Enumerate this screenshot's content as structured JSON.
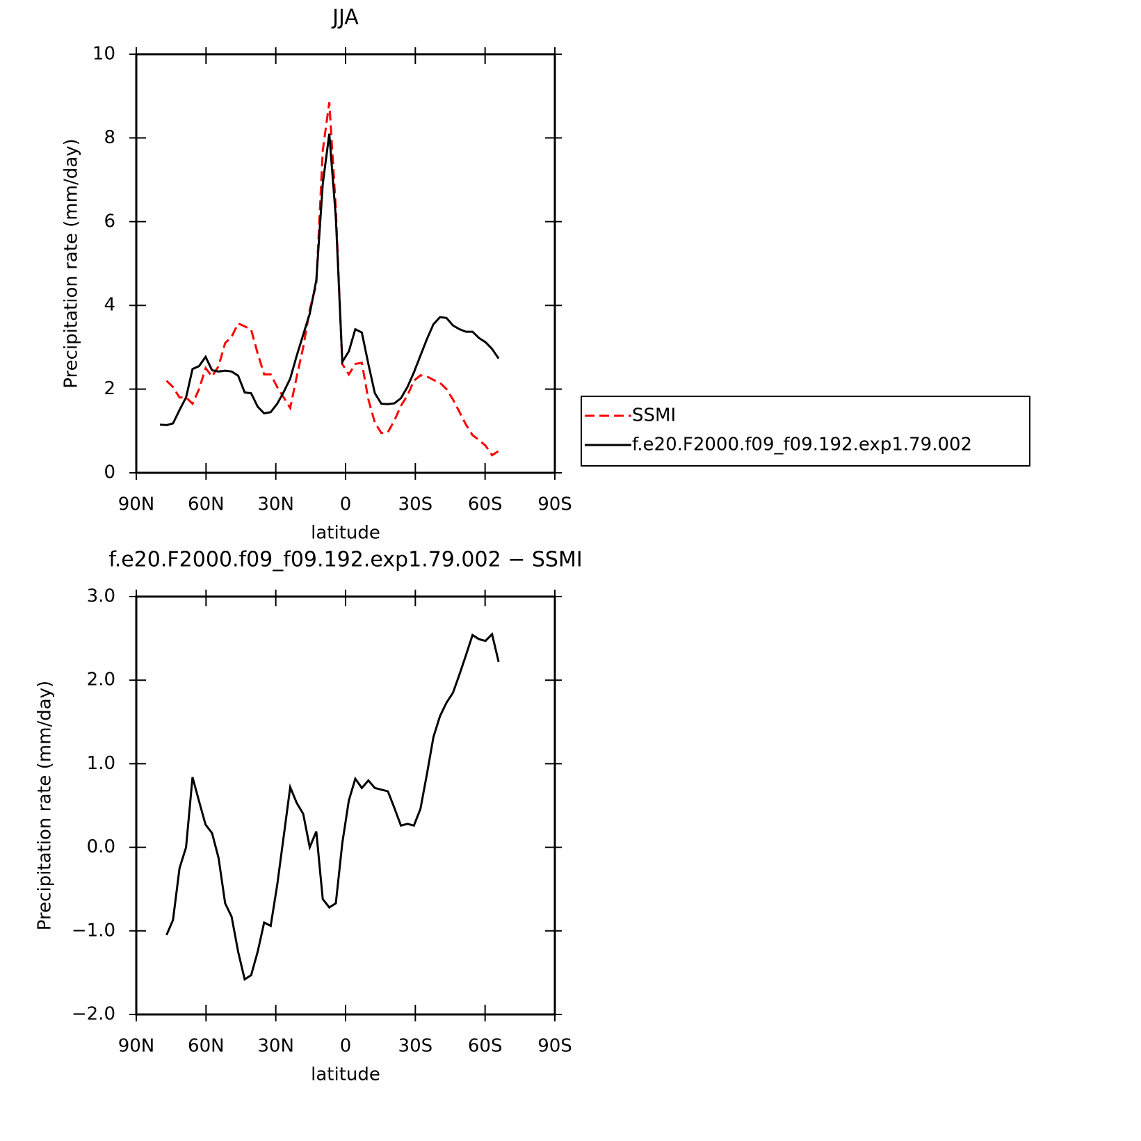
{
  "chart_data": [
    {
      "type": "line",
      "title": "JJA",
      "xlabel": "latitude",
      "ylabel": "Precipitation rate (mm/day)",
      "x": [
        79.8,
        77,
        74.2,
        71.4,
        68.6,
        65.8,
        63,
        60.2,
        57.4,
        54.6,
        51.8,
        49,
        46.2,
        43.4,
        40.6,
        37.8,
        35,
        32.2,
        29.4,
        26.6,
        23.8,
        21,
        18.2,
        15.4,
        12.6,
        9.8,
        7,
        4.2,
        1.4,
        -1.4,
        -4.2,
        -7,
        -9.8,
        -12.6,
        -15.4,
        -18.2,
        -21,
        -23.8,
        -26.6,
        -29.4,
        -32.2,
        -35,
        -37.8,
        -40.6,
        -43.4,
        -46.2,
        -49,
        -51.8,
        -54.6,
        -57.4,
        -60.2,
        -63,
        -65.8
      ],
      "xlim": [
        90,
        -90
      ],
      "xticks": [
        {
          "value": 90,
          "label": "90N"
        },
        {
          "value": 60,
          "label": "60N"
        },
        {
          "value": 30,
          "label": "30N"
        },
        0,
        {
          "value": -30,
          "label": "30S"
        },
        {
          "value": -60,
          "label": "60S"
        },
        {
          "value": -90,
          "label": "90S"
        }
      ],
      "ylim": [
        0,
        10
      ],
      "yticks": [
        0,
        2,
        4,
        6,
        8,
        10
      ],
      "legend": "right",
      "series": [
        {
          "name": "SSMI",
          "color": "#ff0000",
          "dashed": true,
          "values": [
            null,
            2.2,
            2.05,
            1.8,
            1.8,
            1.65,
            2.0,
            2.5,
            2.3,
            2.55,
            3.1,
            3.25,
            3.57,
            3.5,
            3.42,
            2.85,
            2.35,
            2.35,
            2.05,
            1.8,
            1.55,
            2.3,
            3.0,
            3.9,
            4.5,
            7.7,
            8.85,
            6.3,
            2.6,
            2.35,
            2.6,
            2.63,
            1.75,
            1.2,
            0.95,
            0.97,
            1.25,
            1.6,
            1.85,
            2.2,
            2.33,
            2.3,
            2.22,
            2.15,
            2.0,
            1.75,
            1.45,
            1.15,
            0.9,
            0.78,
            0.65,
            0.42,
            0.52
          ]
        },
        {
          "name": "f.e20.F2000.f09_f09.192.exp1.79.002",
          "color": "#000000",
          "dashed": false,
          "values": [
            1.15,
            1.14,
            1.18,
            1.5,
            1.8,
            2.48,
            2.55,
            2.77,
            2.45,
            2.42,
            2.44,
            2.42,
            2.32,
            1.92,
            1.9,
            1.58,
            1.42,
            1.45,
            1.65,
            1.93,
            2.25,
            2.8,
            3.3,
            3.8,
            4.6,
            6.9,
            8.1,
            6.1,
            2.65,
            2.9,
            3.43,
            3.35,
            2.6,
            1.9,
            1.65,
            1.64,
            1.66,
            1.78,
            2.05,
            2.4,
            2.8,
            3.2,
            3.55,
            3.72,
            3.7,
            3.52,
            3.43,
            3.37,
            3.37,
            3.22,
            3.12,
            2.96,
            2.73
          ]
        }
      ]
    },
    {
      "type": "line",
      "title": "f.e20.F2000.f09_f09.192.exp1.79.002 − SSMI",
      "xlabel": "latitude",
      "ylabel": "Precipitation rate (mm/day)",
      "x": [
        79.8,
        77,
        74.2,
        71.4,
        68.6,
        65.8,
        63,
        60.2,
        57.4,
        54.6,
        51.8,
        49,
        46.2,
        43.4,
        40.6,
        37.8,
        35,
        32.2,
        29.4,
        26.6,
        23.8,
        21,
        18.2,
        15.4,
        12.6,
        9.8,
        7,
        4.2,
        1.4,
        -1.4,
        -4.2,
        -7,
        -9.8,
        -12.6,
        -15.4,
        -18.2,
        -21,
        -23.8,
        -26.6,
        -29.4,
        -32.2,
        -35,
        -37.8,
        -40.6,
        -43.4,
        -46.2,
        -49,
        -51.8,
        -54.6,
        -57.4,
        -60.2,
        -63,
        -65.8
      ],
      "xlim": [
        90,
        -90
      ],
      "xticks": [
        {
          "value": 90,
          "label": "90N"
        },
        {
          "value": 60,
          "label": "60N"
        },
        {
          "value": 30,
          "label": "30N"
        },
        0,
        {
          "value": -30,
          "label": "30S"
        },
        {
          "value": -60,
          "label": "60S"
        },
        {
          "value": -90,
          "label": "90S"
        }
      ],
      "ylim": [
        -2,
        3
      ],
      "yticks": [
        {
          "value": -2,
          "label": "−2.0"
        },
        {
          "value": -1,
          "label": "−1.0"
        },
        {
          "value": 0,
          "label": "0.0"
        },
        {
          "value": 1,
          "label": "1.0"
        },
        {
          "value": 2,
          "label": "2.0"
        },
        {
          "value": 3,
          "label": "3.0"
        }
      ],
      "series": [
        {
          "color": "#000000",
          "dashed": false,
          "values": [
            null,
            -1.05,
            -0.87,
            -0.25,
            0.0,
            0.84,
            0.55,
            0.27,
            0.17,
            -0.13,
            -0.67,
            -0.83,
            -1.25,
            -1.58,
            -1.53,
            -1.25,
            -0.9,
            -0.94,
            -0.45,
            0.13,
            0.72,
            0.53,
            0.4,
            0.0,
            0.19,
            -0.62,
            -0.72,
            -0.67,
            0.05,
            0.56,
            0.82,
            0.71,
            0.8,
            0.71,
            0.69,
            0.67,
            0.47,
            0.26,
            0.28,
            0.26,
            0.46,
            0.88,
            1.32,
            1.57,
            1.73,
            1.85,
            2.07,
            2.3,
            2.54,
            2.49,
            2.47,
            2.55,
            2.22
          ]
        }
      ]
    }
  ]
}
